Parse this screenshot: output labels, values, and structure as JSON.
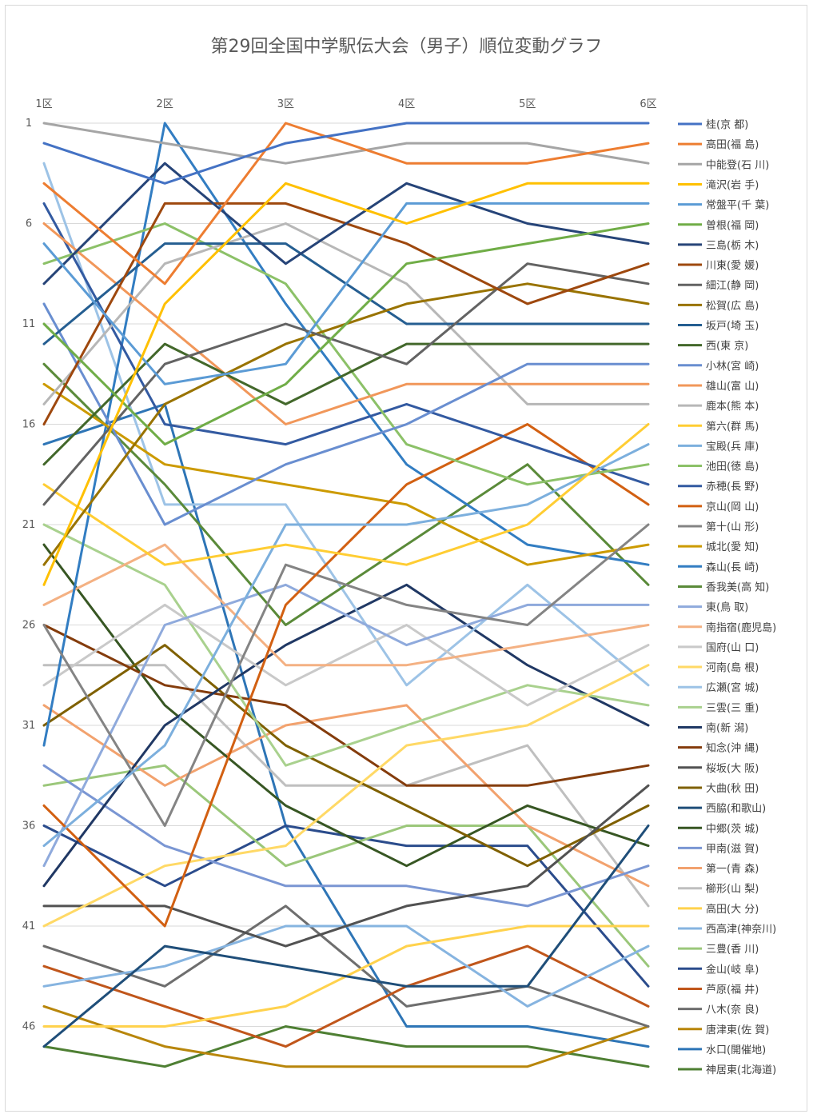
{
  "chart_data": {
    "type": "line",
    "title": "第29回全国中学駅伝大会（男子）順位変動グラフ",
    "categories": [
      "1区",
      "2区",
      "3区",
      "4区",
      "5区",
      "6区"
    ],
    "y_ticks": [
      "1",
      "6",
      "11",
      "16",
      "21",
      "26",
      "31",
      "36",
      "41",
      "46"
    ],
    "y_reversed": true,
    "ylim": [
      1,
      48
    ],
    "grid": true,
    "legend_position": "right",
    "series": [
      {
        "name": "桂(京 都)",
        "color": "#4472C4",
        "values": [
          2,
          4,
          2,
          1,
          1,
          1
        ]
      },
      {
        "name": "高田(福 島)",
        "color": "#ED7D31",
        "values": [
          4,
          9,
          1,
          3,
          3,
          2
        ]
      },
      {
        "name": "中能登(石 川)",
        "color": "#A5A5A5",
        "values": [
          1,
          2,
          3,
          2,
          2,
          3
        ]
      },
      {
        "name": "滝沢(岩 手)",
        "color": "#FFC000",
        "values": [
          24,
          10,
          4,
          6,
          4,
          4
        ]
      },
      {
        "name": "常盤平(千 葉)",
        "color": "#5B9BD5",
        "values": [
          7,
          14,
          13,
          5,
          5,
          5
        ]
      },
      {
        "name": "曽根(福 岡)",
        "color": "#70AD47",
        "values": [
          11,
          17,
          14,
          8,
          7,
          6
        ]
      },
      {
        "name": "三島(栃 木)",
        "color": "#264478",
        "values": [
          9,
          3,
          8,
          4,
          6,
          7
        ]
      },
      {
        "name": "川東(愛 媛)",
        "color": "#9E480E",
        "values": [
          16,
          5,
          5,
          7,
          10,
          8
        ]
      },
      {
        "name": "細江(静 岡)",
        "color": "#636363",
        "values": [
          20,
          13,
          11,
          13,
          8,
          9
        ]
      },
      {
        "name": "松賀(広 島)",
        "color": "#997300",
        "values": [
          23,
          15,
          12,
          10,
          9,
          10
        ]
      },
      {
        "name": "坂戸(埼 玉)",
        "color": "#255E91",
        "values": [
          12,
          7,
          7,
          11,
          11,
          11
        ]
      },
      {
        "name": "西(東 京)",
        "color": "#43682B",
        "values": [
          18,
          12,
          15,
          12,
          12,
          12
        ]
      },
      {
        "name": "小林(宮 崎)",
        "color": "#698ED0",
        "values": [
          10,
          21,
          18,
          16,
          13,
          13
        ]
      },
      {
        "name": "雄山(富 山)",
        "color": "#F1975A",
        "values": [
          6,
          11,
          16,
          14,
          14,
          14
        ]
      },
      {
        "name": "鹿本(熊 本)",
        "color": "#B7B7B7",
        "values": [
          15,
          8,
          6,
          9,
          15,
          15
        ]
      },
      {
        "name": "第六(群 馬)",
        "color": "#FFCD33",
        "values": [
          19,
          23,
          22,
          23,
          21,
          16
        ]
      },
      {
        "name": "宝殿(兵 庫)",
        "color": "#7CAFDD",
        "values": [
          37,
          32,
          21,
          21,
          20,
          17
        ]
      },
      {
        "name": "池田(徳 島)",
        "color": "#8CC168",
        "values": [
          8,
          6,
          9,
          17,
          19,
          18
        ]
      },
      {
        "name": "赤穂(長 野)",
        "color": "#335AA1",
        "values": [
          5,
          16,
          17,
          15,
          17,
          19
        ]
      },
      {
        "name": "京山(岡 山)",
        "color": "#D26012",
        "values": [
          35,
          41,
          25,
          19,
          16,
          20
        ]
      },
      {
        "name": "第十(山 形)",
        "color": "#848484",
        "values": [
          26,
          36,
          23,
          25,
          26,
          21
        ]
      },
      {
        "name": "城北(愛 知)",
        "color": "#CC9A00",
        "values": [
          14,
          18,
          19,
          20,
          23,
          22
        ]
      },
      {
        "name": "森山(長 崎)",
        "color": "#327DC2",
        "values": [
          32,
          1,
          10,
          18,
          22,
          23
        ]
      },
      {
        "name": "香我美(高 知)",
        "color": "#5A8A39",
        "values": [
          13,
          19,
          26,
          22,
          18,
          24
        ]
      },
      {
        "name": "東(鳥 取)",
        "color": "#8FAADC",
        "values": [
          38,
          26,
          24,
          27,
          25,
          25
        ]
      },
      {
        "name": "南指宿(鹿児島)",
        "color": "#F4B183",
        "values": [
          25,
          22,
          28,
          28,
          27,
          26
        ]
      },
      {
        "name": "国府(山 口)",
        "color": "#C9C9C9",
        "values": [
          29,
          25,
          29,
          26,
          30,
          27
        ]
      },
      {
        "name": "河南(島 根)",
        "color": "#FFD966",
        "values": [
          41,
          38,
          37,
          32,
          31,
          28
        ]
      },
      {
        "name": "広瀬(宮 城)",
        "color": "#9DC3E6",
        "values": [
          3,
          20,
          20,
          29,
          24,
          29
        ]
      },
      {
        "name": "三雲(三 重)",
        "color": "#A9D18E",
        "values": [
          21,
          24,
          33,
          31,
          29,
          30
        ]
      },
      {
        "name": "南(新 潟)",
        "color": "#203864",
        "values": [
          39,
          31,
          27,
          24,
          28,
          31
        ]
      },
      {
        "name": "知念(沖 縄)",
        "color": "#843C0C",
        "values": [
          26,
          29,
          30,
          34,
          34,
          33
        ]
      },
      {
        "name": "桜坂(大 阪)",
        "color": "#525252",
        "values": [
          40,
          40,
          42,
          40,
          39,
          34
        ]
      },
      {
        "name": "大曲(秋 田)",
        "color": "#7F6000",
        "values": [
          31,
          27,
          32,
          35,
          38,
          35
        ]
      },
      {
        "name": "西脇(和歌山)",
        "color": "#1F4E79",
        "values": [
          47,
          42,
          43,
          44,
          44,
          36
        ]
      },
      {
        "name": "中郷(茨 城)",
        "color": "#375623",
        "values": [
          22,
          30,
          35,
          38,
          35,
          37
        ]
      },
      {
        "name": "甲南(滋 賀)",
        "color": "#7A96D3",
        "values": [
          33,
          37,
          39,
          39,
          40,
          38
        ]
      },
      {
        "name": "第一(青 森)",
        "color": "#F2A26E",
        "values": [
          30,
          34,
          31,
          30,
          36,
          39
        ]
      },
      {
        "name": "櫛形(山 梨)",
        "color": "#BFBFBF",
        "values": [
          28,
          28,
          34,
          34,
          32,
          40
        ]
      },
      {
        "name": "高田(大 分)",
        "color": "#FFD24D",
        "values": [
          46,
          46,
          45,
          42,
          41,
          41
        ]
      },
      {
        "name": "西高津(神奈川)",
        "color": "#86B4E0",
        "values": [
          44,
          43,
          41,
          41,
          45,
          42
        ]
      },
      {
        "name": "三豊(香 川)",
        "color": "#9BC77A",
        "values": [
          34,
          33,
          38,
          36,
          36,
          43
        ]
      },
      {
        "name": "金山(岐 阜)",
        "color": "#2B4C8C",
        "values": [
          36,
          39,
          36,
          37,
          37,
          44
        ]
      },
      {
        "name": "芦原(福 井)",
        "color": "#C0561B",
        "values": [
          43,
          45,
          47,
          44,
          42,
          45
        ]
      },
      {
        "name": "八木(奈 良)",
        "color": "#6E6E6E",
        "values": [
          42,
          44,
          40,
          45,
          44,
          46
        ]
      },
      {
        "name": "唐津東(佐 賀)",
        "color": "#B8860B",
        "values": [
          45,
          47,
          48,
          48,
          48,
          46
        ]
      },
      {
        "name": "水口(開催地)",
        "color": "#2E75B6",
        "values": [
          17,
          15,
          36,
          46,
          46,
          47
        ]
      },
      {
        "name": "神居東(北海道)",
        "color": "#4E7F33",
        "values": [
          47,
          48,
          46,
          47,
          47,
          48
        ]
      }
    ]
  }
}
